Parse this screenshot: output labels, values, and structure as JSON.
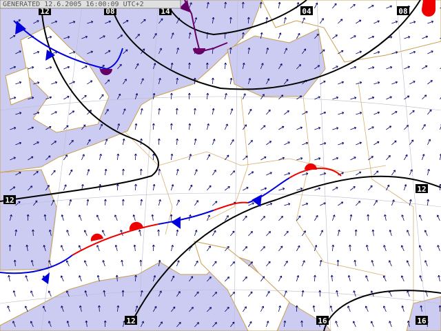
{
  "header": {
    "generated": "GENERATED 12.6.2005 16:00:09 UTC+2"
  },
  "isobar_labels": [
    "12",
    "08",
    "14",
    "04",
    "08",
    "12",
    "12",
    "12",
    "16",
    "16"
  ]
}
